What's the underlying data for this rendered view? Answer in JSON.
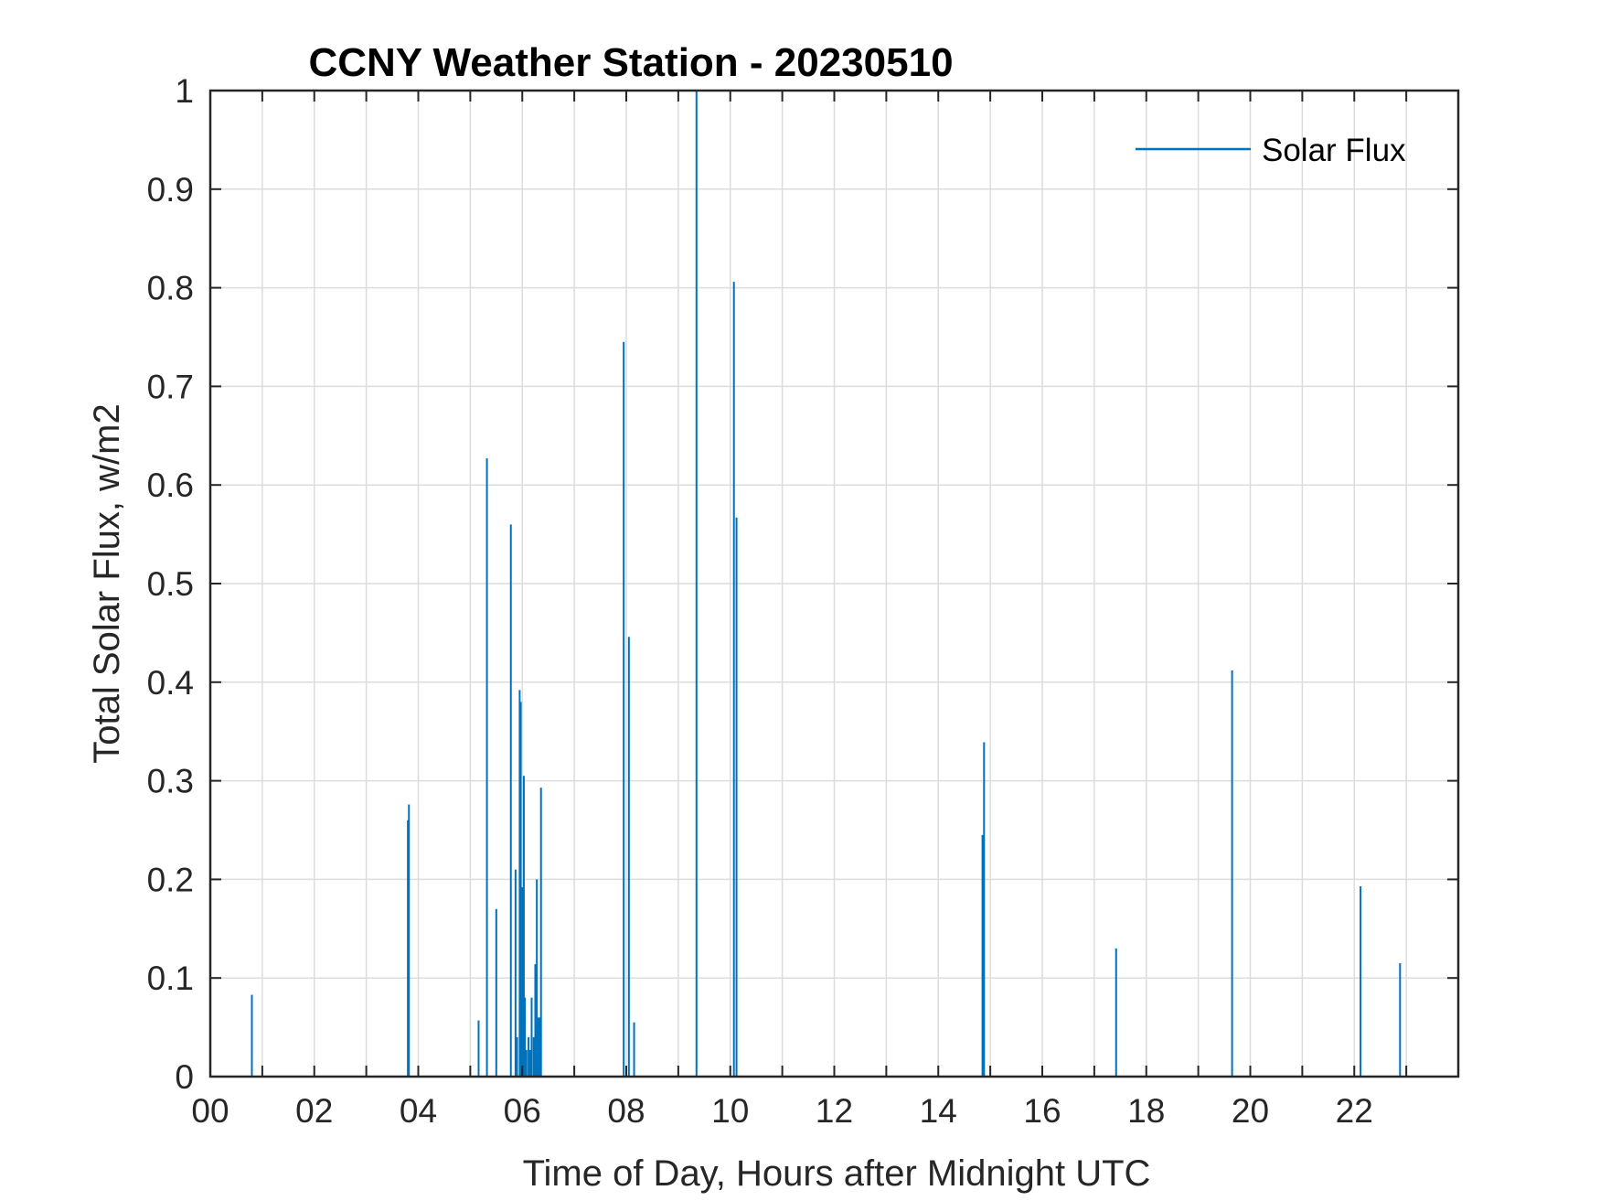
{
  "chart_data": {
    "type": "line",
    "title": "CCNY Weather Station - 20230510",
    "xlabel": "Time of Day, Hours after Midnight UTC",
    "ylabel": "Total Solar Flux, w/m2",
    "xlim": [
      0,
      24
    ],
    "ylim": [
      0,
      1
    ],
    "grid": true,
    "legend": {
      "position": "top-right",
      "entries": [
        "Solar Flux"
      ]
    },
    "x_ticks": [
      0,
      2,
      4,
      6,
      8,
      10,
      12,
      14,
      16,
      18,
      20,
      22
    ],
    "x_tick_labels": [
      "00",
      "02",
      "04",
      "06",
      "08",
      "10",
      "12",
      "14",
      "16",
      "18",
      "20",
      "22"
    ],
    "y_ticks": [
      0,
      0.1,
      0.2,
      0.3,
      0.4,
      0.5,
      0.6,
      0.7,
      0.8,
      0.9,
      1
    ],
    "y_tick_labels": [
      "0",
      "0.1",
      "0.2",
      "0.3",
      "0.4",
      "0.5",
      "0.6",
      "0.7",
      "0.8",
      "0.9",
      "1"
    ],
    "series": [
      {
        "name": "Solar Flux",
        "color": "#0072BD",
        "x": [
          0.8,
          3.8,
          3.82,
          5.16,
          5.32,
          5.5,
          5.78,
          5.87,
          5.9,
          5.95,
          5.97,
          6.0,
          6.03,
          6.05,
          6.08,
          6.12,
          6.15,
          6.18,
          6.22,
          6.25,
          6.28,
          6.3,
          6.33,
          6.36,
          7.95,
          8.05,
          8.15,
          9.35,
          10.07,
          10.12,
          14.85,
          14.88,
          17.42,
          19.65,
          22.12,
          22.88
        ],
        "y": [
          0.083,
          0.26,
          0.276,
          0.057,
          0.627,
          0.17,
          0.56,
          0.21,
          0.04,
          0.392,
          0.38,
          0.192,
          0.305,
          0.08,
          0.027,
          0.04,
          0.027,
          0.08,
          0.04,
          0.114,
          0.2,
          0.06,
          0.06,
          0.293,
          0.745,
          0.446,
          0.055,
          1.0,
          0.806,
          0.567,
          0.245,
          0.339,
          0.13,
          0.412,
          0.193,
          0.115
        ]
      }
    ]
  }
}
